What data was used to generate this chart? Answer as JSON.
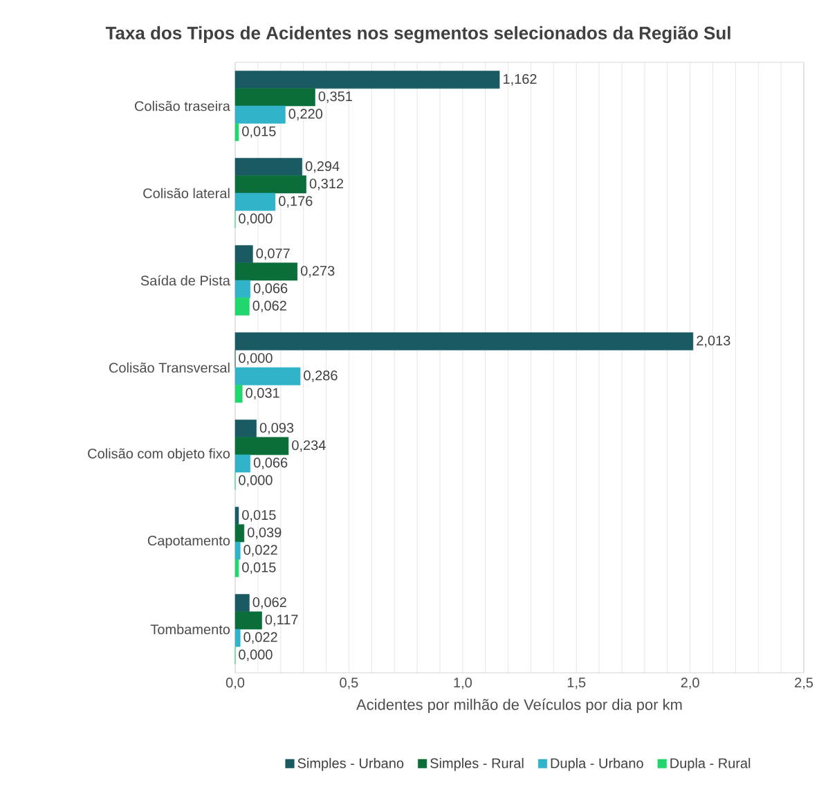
{
  "chart_data": {
    "type": "bar",
    "orientation": "horizontal",
    "title": "Taxa dos Tipos de Acidentes nos segmentos selecionados da Região Sul",
    "xlabel": "Acidentes por milhão de Veículos por dia por km",
    "categories": [
      "Colisão traseira",
      "Colisão lateral",
      "Saída de Pista",
      "Colisão Transversal",
      "Colisão com objeto fixo",
      "Capotamento",
      "Tombamento"
    ],
    "series": [
      {
        "name": "Simples - Urbano",
        "color": "#1a5a63",
        "values": [
          1.162,
          0.294,
          0.077,
          2.013,
          0.093,
          0.015,
          0.062
        ],
        "value_labels": [
          "1,162",
          "0,294",
          "0,077",
          "2,013",
          "0,093",
          "0,015",
          "0,062"
        ]
      },
      {
        "name": "Simples - Rural",
        "color": "#0b6e3a",
        "values": [
          0.351,
          0.312,
          0.273,
          0.0,
          0.234,
          0.039,
          0.117
        ],
        "value_labels": [
          "0,351",
          "0,312",
          "0,273",
          "0,000",
          "0,234",
          "0,039",
          "0,117"
        ]
      },
      {
        "name": "Dupla - Urbano",
        "color": "#31b3c9",
        "values": [
          0.22,
          0.176,
          0.066,
          0.286,
          0.066,
          0.022,
          0.022
        ],
        "value_labels": [
          "0,220",
          "0,176",
          "0,066",
          "0,286",
          "0,066",
          "0,022",
          "0,022"
        ]
      },
      {
        "name": "Dupla - Rural",
        "color": "#21d66c",
        "values": [
          0.015,
          0.0,
          0.062,
          0.031,
          0.0,
          0.015,
          0.0
        ],
        "value_labels": [
          "0,015",
          "0,000",
          "0,062",
          "0,031",
          "0,000",
          "0,015",
          "0,000"
        ]
      }
    ],
    "xlim": [
      0,
      2.5
    ],
    "xticks": [
      {
        "value": 0,
        "label": "0,0"
      },
      {
        "value": 0.1,
        "label": null
      },
      {
        "value": 0.2,
        "label": null
      },
      {
        "value": 0.3,
        "label": null
      },
      {
        "value": 0.4,
        "label": null
      },
      {
        "value": 0.5,
        "label": "0,5"
      },
      {
        "value": 0.6,
        "label": null
      },
      {
        "value": 0.7,
        "label": null
      },
      {
        "value": 0.8,
        "label": null
      },
      {
        "value": 0.9,
        "label": null
      },
      {
        "value": 1.0,
        "label": "1,0"
      },
      {
        "value": 1.1,
        "label": null
      },
      {
        "value": 1.2,
        "label": null
      },
      {
        "value": 1.3,
        "label": null
      },
      {
        "value": 1.4,
        "label": null
      },
      {
        "value": 1.5,
        "label": "1,5"
      },
      {
        "value": 1.6,
        "label": null
      },
      {
        "value": 1.7,
        "label": null
      },
      {
        "value": 1.8,
        "label": null
      },
      {
        "value": 1.9,
        "label": null
      },
      {
        "value": 2.0,
        "label": "2,0"
      },
      {
        "value": 2.1,
        "label": null
      },
      {
        "value": 2.2,
        "label": null
      },
      {
        "value": 2.3,
        "label": null
      },
      {
        "value": 2.4,
        "label": null
      },
      {
        "value": 2.5,
        "label": "2,5"
      }
    ],
    "grid": "x",
    "legend": "bottom"
  }
}
